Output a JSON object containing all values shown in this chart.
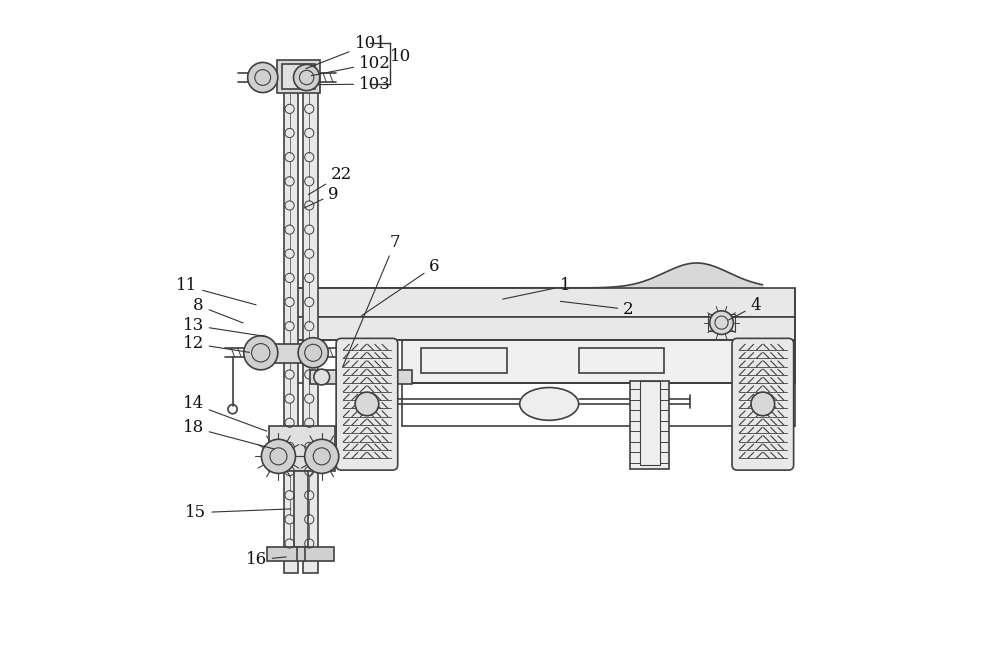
{
  "bg_color": "#ffffff",
  "line_color": "#404040",
  "lw": 1.2,
  "fig_width": 10.0,
  "fig_height": 6.61
}
